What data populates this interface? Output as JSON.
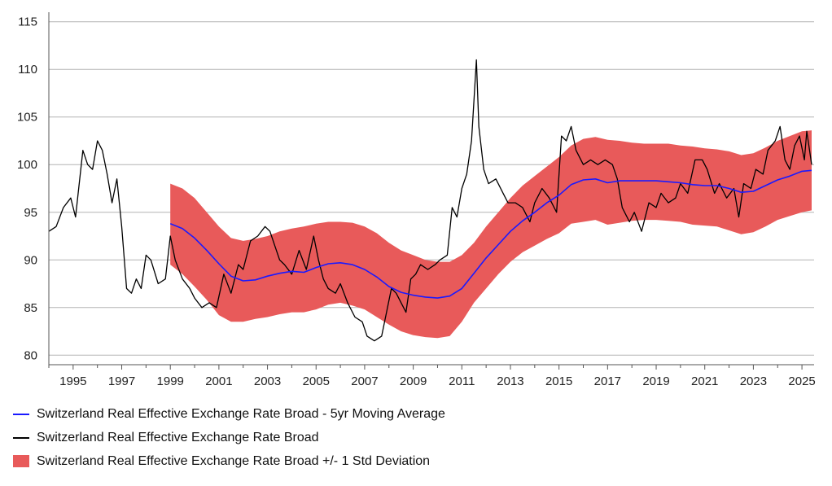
{
  "chart_data": {
    "type": "line",
    "title": "",
    "xlabel": "",
    "ylabel": "",
    "xlim": [
      1994.0,
      2025.5
    ],
    "ylim": [
      79,
      116
    ],
    "y_ticks": [
      80,
      85,
      90,
      95,
      100,
      105,
      110,
      115
    ],
    "x_ticks": [
      1995,
      1997,
      1999,
      2001,
      2003,
      2005,
      2007,
      2009,
      2011,
      2013,
      2015,
      2017,
      2019,
      2021,
      2023,
      2025
    ],
    "grid": "horizontal",
    "legend_position": "bottom",
    "series": [
      {
        "name": "Switzerland Real Effective Exchange Rate Broad - 5yr Moving Average",
        "color": "#1a1aff",
        "x": [
          1999.0,
          1999.5,
          2000.0,
          2000.5,
          2001.0,
          2001.5,
          2002.0,
          2002.5,
          2003.0,
          2003.5,
          2004.0,
          2004.5,
          2005.0,
          2005.5,
          2006.0,
          2006.5,
          2007.0,
          2007.5,
          2008.0,
          2008.5,
          2009.0,
          2009.5,
          2010.0,
          2010.5,
          2011.0,
          2011.5,
          2012.0,
          2012.5,
          2013.0,
          2013.5,
          2014.0,
          2014.5,
          2015.0,
          2015.5,
          2016.0,
          2016.5,
          2017.0,
          2017.5,
          2018.0,
          2018.5,
          2019.0,
          2019.5,
          2020.0,
          2020.5,
          2021.0,
          2021.5,
          2022.0,
          2022.5,
          2023.0,
          2023.5,
          2024.0,
          2024.5,
          2025.0,
          2025.4
        ],
        "values": [
          93.8,
          93.3,
          92.3,
          91.0,
          89.6,
          88.3,
          87.8,
          87.9,
          88.3,
          88.6,
          88.8,
          88.7,
          89.2,
          89.6,
          89.7,
          89.5,
          89.0,
          88.2,
          87.2,
          86.6,
          86.3,
          86.1,
          86.0,
          86.2,
          87.0,
          88.6,
          90.2,
          91.6,
          93.0,
          94.1,
          95.0,
          96.0,
          96.8,
          97.9,
          98.4,
          98.5,
          98.1,
          98.3,
          98.3,
          98.3,
          98.3,
          98.2,
          98.1,
          97.9,
          97.8,
          97.8,
          97.5,
          97.1,
          97.2,
          97.8,
          98.4,
          98.8,
          99.3,
          99.4
        ]
      },
      {
        "name": "Switzerland Real Effective Exchange Rate Broad",
        "color": "#000000",
        "x": [
          1994.0,
          1994.3,
          1994.6,
          1994.9,
          1995.1,
          1995.4,
          1995.6,
          1995.8,
          1996.0,
          1996.2,
          1996.4,
          1996.6,
          1996.8,
          1997.0,
          1997.2,
          1997.4,
          1997.6,
          1997.8,
          1998.0,
          1998.2,
          1998.5,
          1998.8,
          1999.0,
          1999.2,
          1999.5,
          1999.8,
          2000.0,
          2000.3,
          2000.6,
          2000.9,
          2001.2,
          2001.5,
          2001.8,
          2002.0,
          2002.3,
          2002.6,
          2002.9,
          2003.1,
          2003.3,
          2003.5,
          2003.7,
          2004.0,
          2004.3,
          2004.6,
          2004.9,
          2005.1,
          2005.3,
          2005.5,
          2005.8,
          2006.0,
          2006.3,
          2006.6,
          2006.9,
          2007.1,
          2007.4,
          2007.7,
          2007.9,
          2008.1,
          2008.3,
          2008.5,
          2008.7,
          2008.9,
          2009.1,
          2009.3,
          2009.6,
          2009.9,
          2010.1,
          2010.4,
          2010.6,
          2010.8,
          2011.0,
          2011.2,
          2011.4,
          2011.6,
          2011.7,
          2011.9,
          2012.1,
          2012.4,
          2012.7,
          2012.9,
          2013.2,
          2013.5,
          2013.8,
          2014.0,
          2014.3,
          2014.6,
          2014.9,
          2015.1,
          2015.3,
          2015.5,
          2015.7,
          2016.0,
          2016.3,
          2016.6,
          2016.9,
          2017.2,
          2017.4,
          2017.6,
          2017.9,
          2018.1,
          2018.4,
          2018.7,
          2019.0,
          2019.2,
          2019.5,
          2019.8,
          2020.0,
          2020.3,
          2020.6,
          2020.9,
          2021.1,
          2021.4,
          2021.6,
          2021.9,
          2022.2,
          2022.4,
          2022.6,
          2022.9,
          2023.1,
          2023.4,
          2023.6,
          2023.9,
          2024.1,
          2024.3,
          2024.5,
          2024.7,
          2024.9,
          2025.1,
          2025.2,
          2025.4
        ],
        "values": [
          93.0,
          93.5,
          95.5,
          96.5,
          94.5,
          101.5,
          100.0,
          99.5,
          102.5,
          101.5,
          99.0,
          96.0,
          98.5,
          93.5,
          87.0,
          86.5,
          88.0,
          87.0,
          90.5,
          90.0,
          87.5,
          88.0,
          92.5,
          90.0,
          88.0,
          87.0,
          86.0,
          85.0,
          85.5,
          85.0,
          88.5,
          86.5,
          89.5,
          89.0,
          92.0,
          92.5,
          93.5,
          93.0,
          91.5,
          90.0,
          89.5,
          88.5,
          91.0,
          89.0,
          92.5,
          90.0,
          88.0,
          87.0,
          86.5,
          87.5,
          85.5,
          84.0,
          83.5,
          82.0,
          81.5,
          82.0,
          84.5,
          87.0,
          86.5,
          85.5,
          84.5,
          88.0,
          88.5,
          89.5,
          89.0,
          89.5,
          90.0,
          90.5,
          95.5,
          94.5,
          97.5,
          99.0,
          102.5,
          111.0,
          104.0,
          99.5,
          98.0,
          98.5,
          97.0,
          96.0,
          96.0,
          95.5,
          94.0,
          96.0,
          97.5,
          96.5,
          95.0,
          103.0,
          102.5,
          104.0,
          101.5,
          100.0,
          100.5,
          100.0,
          100.5,
          100.0,
          98.5,
          95.5,
          94.0,
          95.0,
          93.0,
          96.0,
          95.5,
          97.0,
          96.0,
          96.5,
          98.0,
          97.0,
          100.5,
          100.5,
          99.5,
          97.0,
          98.0,
          96.5,
          97.5,
          94.5,
          98.0,
          97.5,
          99.5,
          99.0,
          101.5,
          102.5,
          104.0,
          100.5,
          99.5,
          102.0,
          103.0,
          100.5,
          103.5,
          100.0
        ]
      },
      {
        "name": "Switzerland Real Effective Exchange Rate Broad +/- 1 Std Deviation",
        "color": "#e85a5a",
        "x": [
          1999.0,
          1999.5,
          2000.0,
          2000.5,
          2001.0,
          2001.5,
          2002.0,
          2002.5,
          2003.0,
          2003.5,
          2004.0,
          2004.5,
          2005.0,
          2005.5,
          2006.0,
          2006.5,
          2007.0,
          2007.5,
          2008.0,
          2008.5,
          2009.0,
          2009.5,
          2010.0,
          2010.5,
          2011.0,
          2011.5,
          2012.0,
          2012.5,
          2013.0,
          2013.5,
          2014.0,
          2014.5,
          2015.0,
          2015.5,
          2016.0,
          2016.5,
          2017.0,
          2017.5,
          2018.0,
          2018.5,
          2019.0,
          2019.5,
          2020.0,
          2020.5,
          2021.0,
          2021.5,
          2022.0,
          2022.5,
          2023.0,
          2023.5,
          2024.0,
          2024.5,
          2025.0,
          2025.4
        ],
        "upper": [
          98.0,
          97.5,
          96.5,
          95.0,
          93.5,
          92.3,
          92.0,
          92.2,
          92.5,
          93.0,
          93.3,
          93.5,
          93.8,
          94.0,
          94.0,
          93.9,
          93.5,
          92.8,
          91.8,
          91.0,
          90.5,
          90.0,
          89.8,
          89.8,
          90.5,
          91.8,
          93.5,
          95.0,
          96.5,
          97.8,
          98.8,
          99.8,
          100.8,
          102.0,
          102.7,
          102.9,
          102.6,
          102.5,
          102.3,
          102.2,
          102.2,
          102.2,
          102.0,
          101.9,
          101.7,
          101.6,
          101.4,
          101.0,
          101.2,
          101.8,
          102.5,
          103.0,
          103.5,
          103.6
        ],
        "lower": [
          89.5,
          88.5,
          87.2,
          85.8,
          84.2,
          83.5,
          83.5,
          83.8,
          84.0,
          84.3,
          84.5,
          84.5,
          84.8,
          85.3,
          85.5,
          85.2,
          84.8,
          84.0,
          83.2,
          82.5,
          82.1,
          81.9,
          81.8,
          82.0,
          83.5,
          85.5,
          87.0,
          88.5,
          89.8,
          90.8,
          91.5,
          92.2,
          92.8,
          93.8,
          94.0,
          94.2,
          93.7,
          93.9,
          94.1,
          94.2,
          94.2,
          94.1,
          94.0,
          93.7,
          93.6,
          93.5,
          93.1,
          92.7,
          92.9,
          93.5,
          94.2,
          94.6,
          95.0,
          95.2
        ]
      }
    ]
  }
}
